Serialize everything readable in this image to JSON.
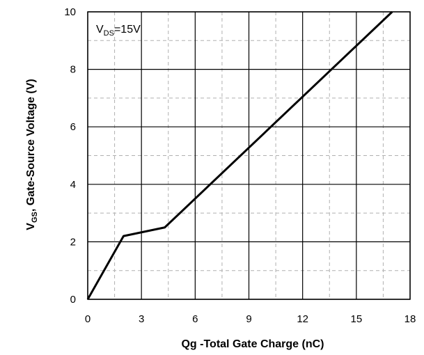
{
  "chart_data": {
    "type": "line",
    "title": "",
    "xlabel": "Qg -Total Gate Charge (nC)",
    "ylabel_main": "V",
    "ylabel_sub": "GS",
    "ylabel_rest": ", Gate-Source Voltage (V)",
    "xlim": [
      0,
      18
    ],
    "ylim": [
      0,
      10
    ],
    "xticks": [
      0,
      3,
      6,
      9,
      12,
      15,
      18
    ],
    "yticks": [
      0,
      2,
      4,
      6,
      8,
      10
    ],
    "major_grid": true,
    "minor_grid_dashed": true,
    "annotation": {
      "main": "V",
      "sub": "DS",
      "rest": "=15V"
    },
    "series": [
      {
        "x": [
          0,
          2.0,
          4.3,
          17.0
        ],
        "y": [
          0,
          2.2,
          2.5,
          10.0
        ]
      }
    ]
  }
}
